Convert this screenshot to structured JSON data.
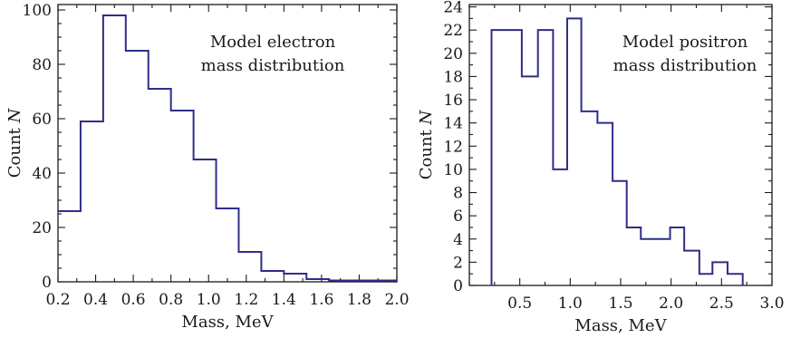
{
  "chart_data": [
    {
      "type": "histogram",
      "annotation": [
        "Model electron",
        "mass distribution"
      ],
      "xlabel": "Mass, MeV",
      "ylabel": "Count",
      "ylabel_italic": "N",
      "xlim": [
        0.2,
        2.0
      ],
      "ylim": [
        0,
        102
      ],
      "x_major_ticks": [
        0.2,
        0.4,
        0.6,
        0.8,
        1.0,
        1.2,
        1.4,
        1.6,
        1.8,
        2.0
      ],
      "x_tick_labels": [
        "0.2",
        "0.4",
        "0.6",
        "0.8",
        "1.0",
        "1.2",
        "1.4",
        "1.6",
        "1.8",
        "2.0"
      ],
      "y_major_ticks": [
        0,
        20,
        40,
        60,
        80,
        100
      ],
      "y_tick_labels": [
        "0",
        "20",
        "40",
        "60",
        "80",
        "100"
      ],
      "bin_edges": [
        0.2,
        0.32,
        0.44,
        0.56,
        0.68,
        0.8,
        0.92,
        1.04,
        1.16,
        1.28,
        1.4,
        1.52,
        1.64,
        1.76,
        1.88,
        2.0
      ],
      "counts": [
        26,
        59,
        98,
        85,
        71,
        63,
        45,
        27,
        11,
        4,
        3,
        1,
        0.5,
        0.5,
        0.5
      ],
      "color": "#2e2e8a"
    },
    {
      "type": "histogram",
      "annotation": [
        "Model positron",
        "mass distribution"
      ],
      "xlabel": "Mass, MeV",
      "ylabel": "Count",
      "ylabel_italic": "N",
      "xlim": [
        0,
        3.0
      ],
      "ylim": [
        0,
        24.2
      ],
      "x_major_ticks": [
        0.5,
        1.0,
        1.5,
        2.0,
        2.5,
        3.0
      ],
      "x_tick_labels": [
        "0.5",
        "1.0",
        "1.5",
        "2.0",
        "2.5",
        "3.0"
      ],
      "y_major_ticks": [
        0,
        2,
        4,
        6,
        8,
        10,
        12,
        14,
        16,
        18,
        20,
        22,
        24
      ],
      "y_tick_labels": [
        "0",
        "2",
        "4",
        "6",
        "8",
        "10",
        "12",
        "14",
        "16",
        "18",
        "20",
        "22",
        "24"
      ],
      "bin_edges": [
        0.22,
        0.52,
        0.68,
        0.83,
        0.97,
        1.11,
        1.27,
        1.42,
        1.56,
        1.7,
        1.99,
        2.13,
        2.28,
        2.41,
        2.56,
        2.71
      ],
      "counts": [
        22,
        18,
        22,
        10,
        23,
        15,
        14,
        9,
        5,
        4,
        5,
        3,
        1,
        2,
        1
      ],
      "color": "#2e2e8a"
    }
  ]
}
